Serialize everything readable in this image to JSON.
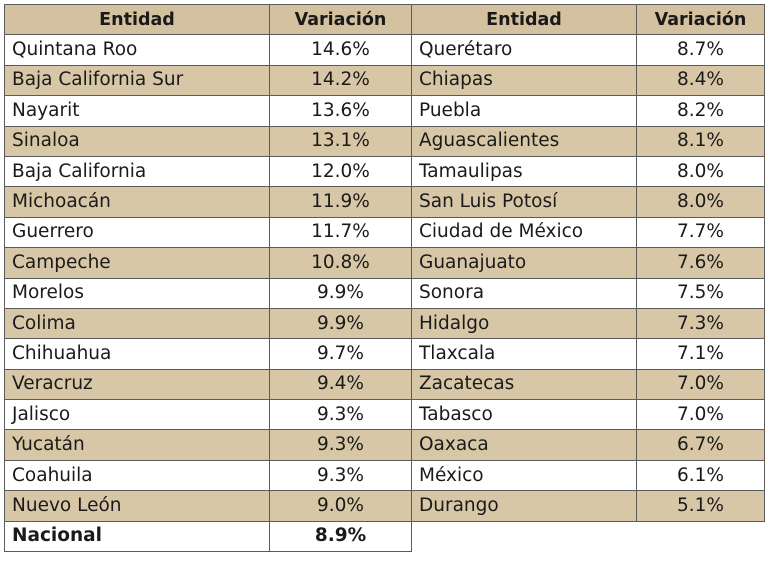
{
  "header": {
    "col1": "Entidad",
    "col2": "Variación",
    "col3": "Entidad",
    "col4": "Variación"
  },
  "rows": [
    {
      "left": {
        "entidad": "Quintana Roo",
        "variacion": "14.6%"
      },
      "right": {
        "entidad": "Querétaro",
        "variacion": "8.7%"
      }
    },
    {
      "left": {
        "entidad": "Baja California Sur",
        "variacion": "14.2%"
      },
      "right": {
        "entidad": "Chiapas",
        "variacion": "8.4%"
      }
    },
    {
      "left": {
        "entidad": "Nayarit",
        "variacion": "13.6%"
      },
      "right": {
        "entidad": "Puebla",
        "variacion": "8.2%"
      }
    },
    {
      "left": {
        "entidad": "Sinaloa",
        "variacion": "13.1%"
      },
      "right": {
        "entidad": "Aguascalientes",
        "variacion": "8.1%"
      }
    },
    {
      "left": {
        "entidad": "Baja California",
        "variacion": "12.0%"
      },
      "right": {
        "entidad": "Tamaulipas",
        "variacion": "8.0%"
      }
    },
    {
      "left": {
        "entidad": "Michoacán",
        "variacion": "11.9%"
      },
      "right": {
        "entidad": "San Luis Potosí",
        "variacion": "8.0%"
      }
    },
    {
      "left": {
        "entidad": "Guerrero",
        "variacion": "11.7%"
      },
      "right": {
        "entidad": "Ciudad de México",
        "variacion": "7.7%"
      }
    },
    {
      "left": {
        "entidad": "Campeche",
        "variacion": "10.8%"
      },
      "right": {
        "entidad": "Guanajuato",
        "variacion": "7.6%"
      }
    },
    {
      "left": {
        "entidad": "Morelos",
        "variacion": "9.9%"
      },
      "right": {
        "entidad": "Sonora",
        "variacion": "7.5%"
      }
    },
    {
      "left": {
        "entidad": "Colima",
        "variacion": "9.9%"
      },
      "right": {
        "entidad": "Hidalgo",
        "variacion": "7.3%"
      }
    },
    {
      "left": {
        "entidad": "Chihuahua",
        "variacion": "9.7%"
      },
      "right": {
        "entidad": "Tlaxcala",
        "variacion": "7.1%"
      }
    },
    {
      "left": {
        "entidad": "Veracruz",
        "variacion": "9.4%"
      },
      "right": {
        "entidad": "Zacatecas",
        "variacion": "7.0%"
      }
    },
    {
      "left": {
        "entidad": "Jalisco",
        "variacion": "9.3%"
      },
      "right": {
        "entidad": "Tabasco",
        "variacion": "7.0%"
      }
    },
    {
      "left": {
        "entidad": "Yucatán",
        "variacion": "9.3%"
      },
      "right": {
        "entidad": "Oaxaca",
        "variacion": "6.7%"
      }
    },
    {
      "left": {
        "entidad": "Coahuila",
        "variacion": "9.3%"
      },
      "right": {
        "entidad": "México",
        "variacion": "6.1%"
      }
    },
    {
      "left": {
        "entidad": "Nuevo León",
        "variacion": "9.0%"
      },
      "right": {
        "entidad": "Durango",
        "variacion": "5.1%"
      }
    }
  ],
  "total": {
    "entidad": "Nacional",
    "variacion": "8.9%"
  }
}
